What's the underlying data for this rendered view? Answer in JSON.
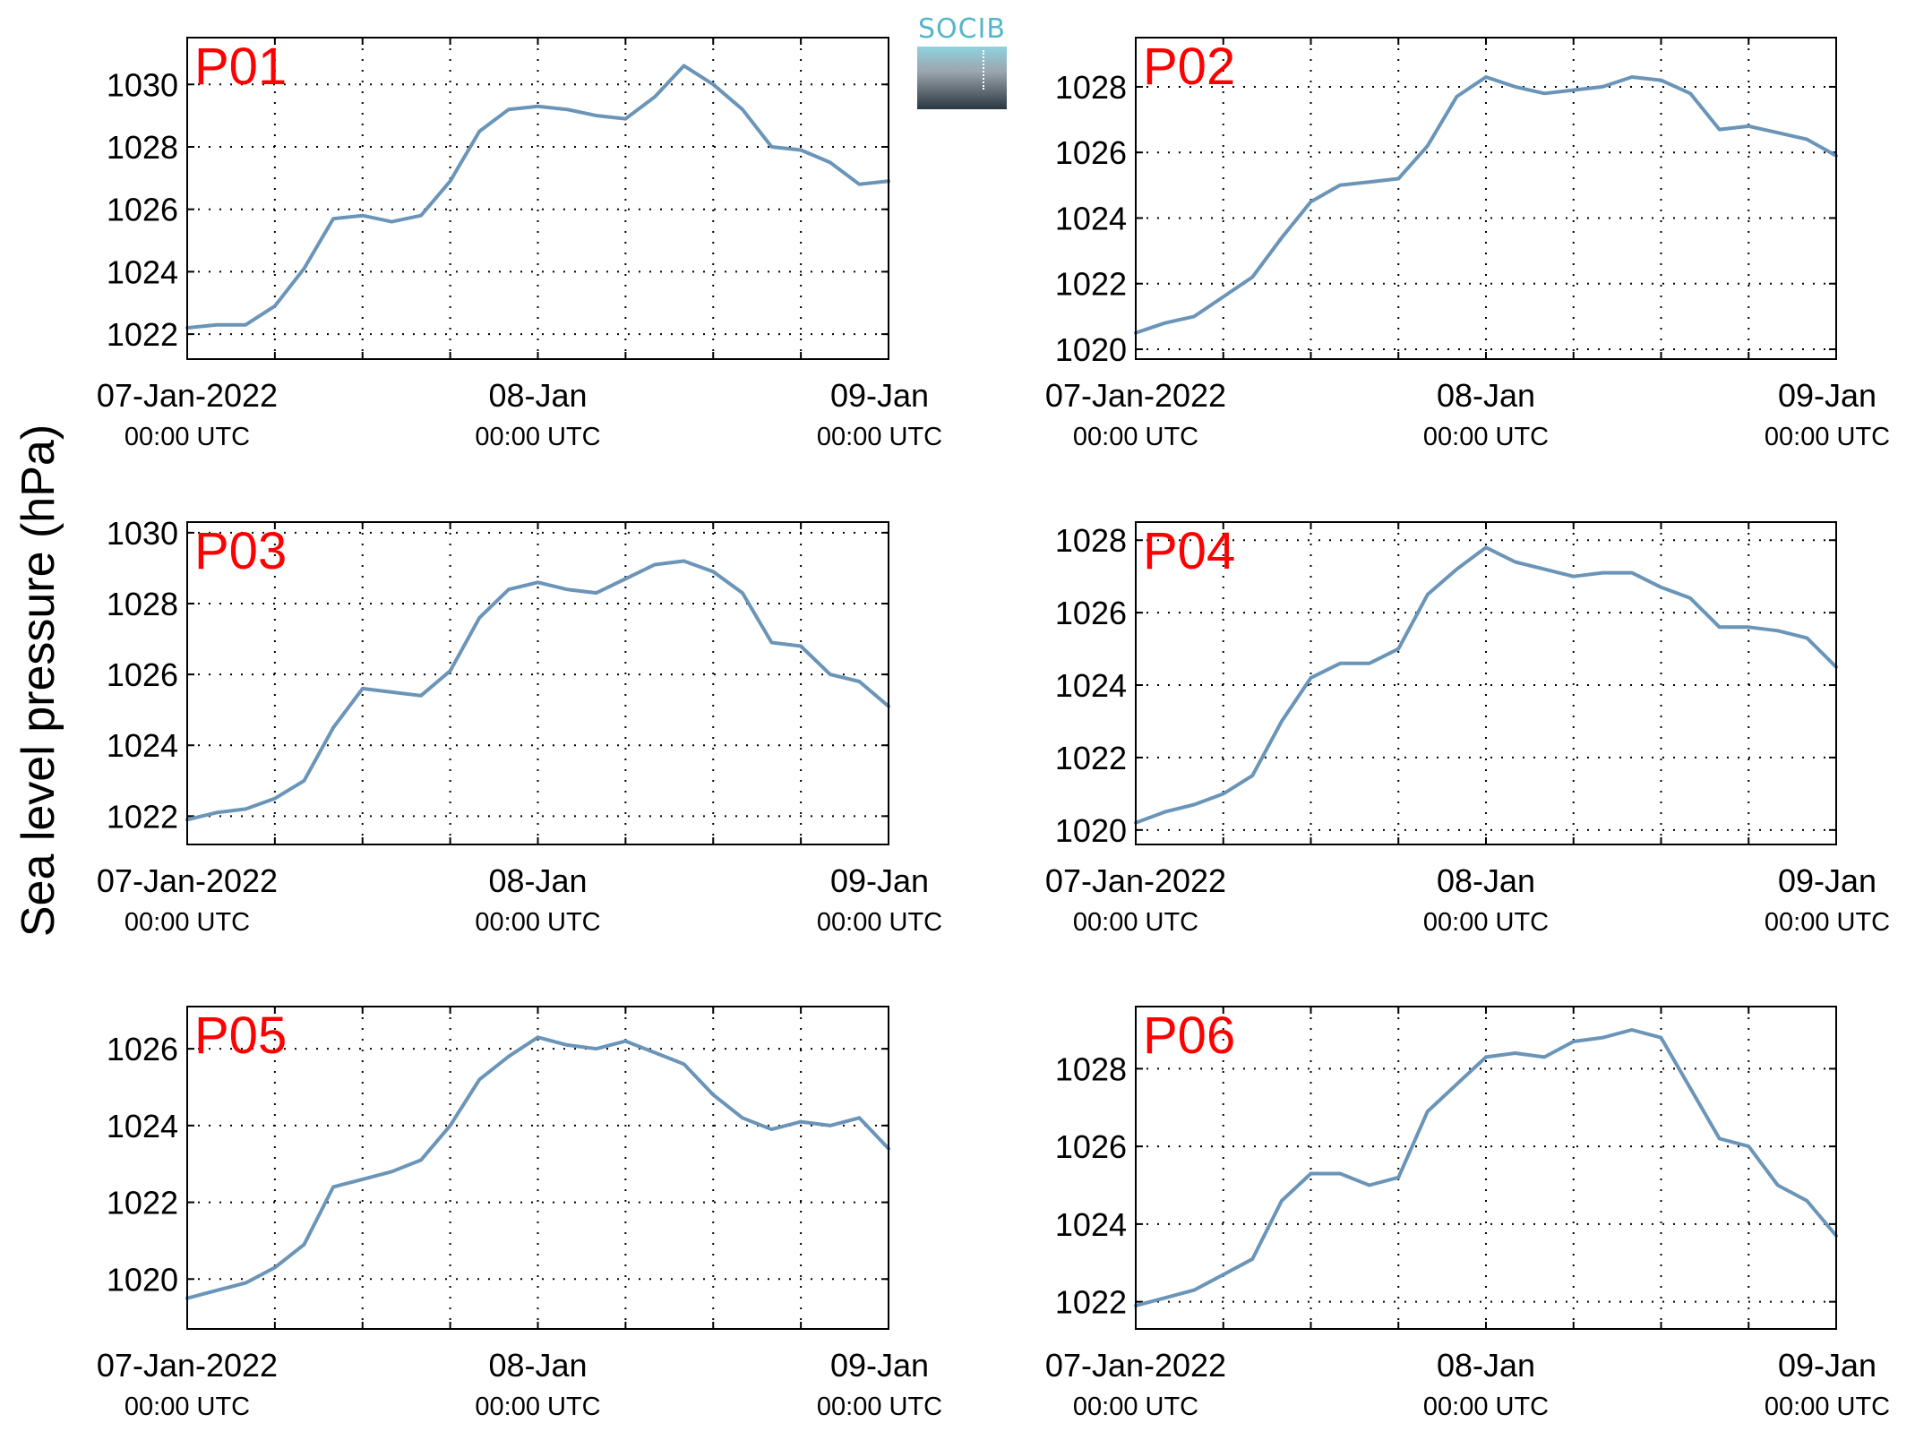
{
  "ylabel": "Sea level pressure (hPa)",
  "logo": {
    "text": "SOCIB"
  },
  "colors": {
    "line": "#6a95b8",
    "panel_label": "#ff0000",
    "grid": "#000000"
  },
  "chart_data": [
    {
      "type": "line",
      "label": "P01",
      "xlim": [
        "07-Jan-2022 00:00 UTC",
        "09-Jan-2022 00:00 UTC"
      ],
      "xticks": [
        {
          "line1": "07-Jan-2022",
          "line2": "00:00 UTC"
        },
        {
          "line1": "08-Jan",
          "line2": "00:00 UTC"
        },
        {
          "line1": "09-Jan",
          "line2": "00:00 UTC"
        }
      ],
      "ylim": [
        1021.2,
        1031.5
      ],
      "yticks": [
        1022,
        1024,
        1026,
        1028,
        1030
      ],
      "grid": true,
      "x_hours": [
        0,
        2,
        4,
        6,
        8,
        10,
        12,
        14,
        16,
        18,
        20,
        22,
        24,
        26,
        28,
        30,
        32,
        34,
        36,
        38,
        40,
        42,
        44,
        46,
        48
      ],
      "values": [
        1022.2,
        1022.3,
        1022.3,
        1022.9,
        1024.1,
        1025.7,
        1025.8,
        1025.6,
        1025.8,
        1026.9,
        1028.5,
        1029.2,
        1029.3,
        1029.2,
        1029.0,
        1028.9,
        1029.6,
        1030.6,
        1030.0,
        1029.2,
        1028.0,
        1027.9,
        1027.5,
        1026.8,
        1026.9
      ]
    },
    {
      "type": "line",
      "label": "P02",
      "xlim": [
        "07-Jan-2022 00:00 UTC",
        "09-Jan-2022 00:00 UTC"
      ],
      "xticks": [
        {
          "line1": "07-Jan-2022",
          "line2": "00:00 UTC"
        },
        {
          "line1": "08-Jan",
          "line2": "00:00 UTC"
        },
        {
          "line1": "09-Jan",
          "line2": "00:00 UTC"
        }
      ],
      "ylim": [
        1019.7,
        1029.5
      ],
      "yticks": [
        1020,
        1022,
        1024,
        1026,
        1028
      ],
      "grid": true,
      "x_hours": [
        0,
        2,
        4,
        6,
        8,
        10,
        12,
        14,
        16,
        18,
        20,
        22,
        24,
        26,
        28,
        30,
        32,
        34,
        36,
        38,
        40,
        42,
        44,
        46,
        48
      ],
      "values": [
        1020.5,
        1020.8,
        1021.0,
        1021.6,
        1022.2,
        1023.4,
        1024.5,
        1025.0,
        1025.1,
        1025.2,
        1026.2,
        1027.7,
        1028.3,
        1028.0,
        1027.8,
        1027.9,
        1028.0,
        1028.3,
        1028.2,
        1027.8,
        1026.7,
        1026.8,
        1026.6,
        1026.4,
        1025.9
      ]
    },
    {
      "type": "line",
      "label": "P03",
      "xlim": [
        "07-Jan-2022 00:00 UTC",
        "09-Jan-2022 00:00 UTC"
      ],
      "xticks": [
        {
          "line1": "07-Jan-2022",
          "line2": "00:00 UTC"
        },
        {
          "line1": "08-Jan",
          "line2": "00:00 UTC"
        },
        {
          "line1": "09-Jan",
          "line2": "00:00 UTC"
        }
      ],
      "ylim": [
        1021.2,
        1030.3
      ],
      "yticks": [
        1022,
        1024,
        1026,
        1028,
        1030
      ],
      "grid": true,
      "x_hours": [
        0,
        2,
        4,
        6,
        8,
        10,
        12,
        14,
        16,
        18,
        20,
        22,
        24,
        26,
        28,
        30,
        32,
        34,
        36,
        38,
        40,
        42,
        44,
        46,
        48
      ],
      "values": [
        1021.9,
        1022.1,
        1022.2,
        1022.5,
        1023.0,
        1024.5,
        1025.6,
        1025.5,
        1025.4,
        1026.1,
        1027.6,
        1028.4,
        1028.6,
        1028.4,
        1028.3,
        1028.7,
        1029.1,
        1029.2,
        1028.9,
        1028.3,
        1026.9,
        1026.8,
        1026.0,
        1025.8,
        1025.1
      ]
    },
    {
      "type": "line",
      "label": "P04",
      "xlim": [
        "07-Jan-2022 00:00 UTC",
        "09-Jan-2022 00:00 UTC"
      ],
      "xticks": [
        {
          "line1": "07-Jan-2022",
          "line2": "00:00 UTC"
        },
        {
          "line1": "08-Jan",
          "line2": "00:00 UTC"
        },
        {
          "line1": "09-Jan",
          "line2": "00:00 UTC"
        }
      ],
      "ylim": [
        1019.6,
        1028.5
      ],
      "yticks": [
        1020,
        1022,
        1024,
        1026,
        1028
      ],
      "grid": true,
      "x_hours": [
        0,
        2,
        4,
        6,
        8,
        10,
        12,
        14,
        16,
        18,
        20,
        22,
        24,
        26,
        28,
        30,
        32,
        34,
        36,
        38,
        40,
        42,
        44,
        46,
        48
      ],
      "values": [
        1020.2,
        1020.5,
        1020.7,
        1021.0,
        1021.5,
        1023.0,
        1024.2,
        1024.6,
        1024.6,
        1025.0,
        1026.5,
        1027.2,
        1027.8,
        1027.4,
        1027.2,
        1027.0,
        1027.1,
        1027.1,
        1026.7,
        1026.4,
        1025.6,
        1025.6,
        1025.5,
        1025.3,
        1024.5
      ]
    },
    {
      "type": "line",
      "label": "P05",
      "xlim": [
        "07-Jan-2022 00:00 UTC",
        "09-Jan-2022 00:00 UTC"
      ],
      "xticks": [
        {
          "line1": "07-Jan-2022",
          "line2": "00:00 UTC"
        },
        {
          "line1": "08-Jan",
          "line2": "00:00 UTC"
        },
        {
          "line1": "09-Jan",
          "line2": "00:00 UTC"
        }
      ],
      "ylim": [
        1018.7,
        1027.1
      ],
      "yticks": [
        1020,
        1022,
        1024,
        1026
      ],
      "grid": true,
      "x_hours": [
        0,
        2,
        4,
        6,
        8,
        10,
        12,
        14,
        16,
        18,
        20,
        22,
        24,
        26,
        28,
        30,
        32,
        34,
        36,
        38,
        40,
        42,
        44,
        46,
        48
      ],
      "values": [
        1019.5,
        1019.7,
        1019.9,
        1020.3,
        1020.9,
        1022.4,
        1022.6,
        1022.8,
        1023.1,
        1024.0,
        1025.2,
        1025.8,
        1026.3,
        1026.1,
        1026.0,
        1026.2,
        1025.9,
        1025.6,
        1024.8,
        1024.2,
        1023.9,
        1024.1,
        1024.0,
        1024.2,
        1023.4
      ]
    },
    {
      "type": "line",
      "label": "P06",
      "xlim": [
        "07-Jan-2022 00:00 UTC",
        "09-Jan-2022 00:00 UTC"
      ],
      "xticks": [
        {
          "line1": "07-Jan-2022",
          "line2": "00:00 UTC"
        },
        {
          "line1": "08-Jan",
          "line2": "00:00 UTC"
        },
        {
          "line1": "09-Jan",
          "line2": "00:00 UTC"
        }
      ],
      "ylim": [
        1021.3,
        1029.6
      ],
      "yticks": [
        1022,
        1024,
        1026,
        1028
      ],
      "grid": true,
      "x_hours": [
        0,
        2,
        4,
        6,
        8,
        10,
        12,
        14,
        16,
        18,
        20,
        22,
        24,
        26,
        28,
        30,
        32,
        34,
        36,
        38,
        40,
        42,
        44,
        46,
        48
      ],
      "values": [
        1021.9,
        1022.1,
        1022.3,
        1022.7,
        1023.1,
        1024.6,
        1025.3,
        1025.3,
        1025.0,
        1025.2,
        1026.9,
        1027.6,
        1028.3,
        1028.4,
        1028.3,
        1028.7,
        1028.8,
        1029.0,
        1028.8,
        1027.5,
        1026.2,
        1026.0,
        1025.0,
        1024.6,
        1023.7
      ]
    }
  ]
}
